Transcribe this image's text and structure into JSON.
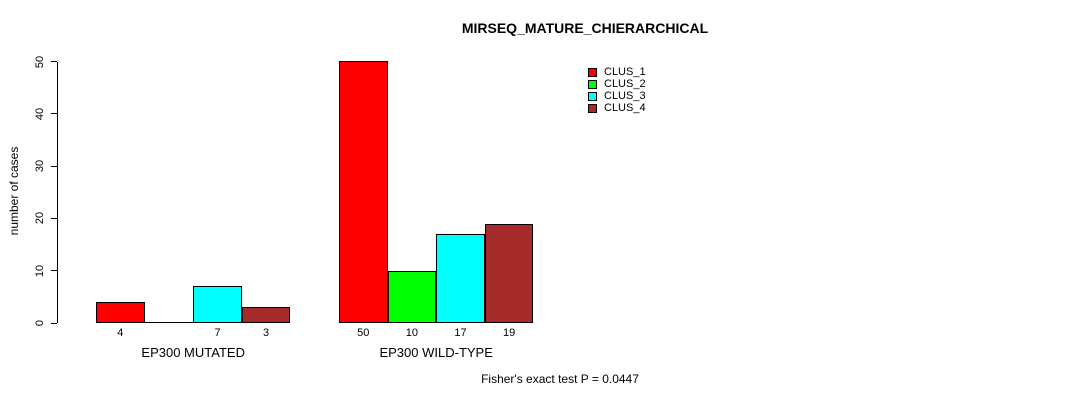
{
  "chart_data": {
    "type": "bar",
    "title": "MIRSEQ_MATURE_CHIERARCHICAL",
    "ylabel": "number of cases",
    "xlabel": "",
    "ylim": [
      0,
      50
    ],
    "yticks": [
      0,
      10,
      20,
      30,
      40,
      50
    ],
    "grid": false,
    "legend_position": "top-right",
    "series": [
      {
        "name": "CLUS_1",
        "color": "#ff0000"
      },
      {
        "name": "CLUS_2",
        "color": "#00ff00"
      },
      {
        "name": "CLUS_3",
        "color": "#00ffff"
      },
      {
        "name": "CLUS_4",
        "color": "#a52a2a"
      }
    ],
    "categories": [
      "EP300 MUTATED",
      "EP300 WILD-TYPE"
    ],
    "groups": [
      {
        "label": "EP300 MUTATED",
        "values": [
          4,
          0,
          7,
          3
        ],
        "bar_labels": [
          "4",
          "",
          "7",
          "3"
        ]
      },
      {
        "label": "EP300 WILD-TYPE",
        "values": [
          50,
          10,
          17,
          19
        ],
        "bar_labels": [
          "50",
          "10",
          "17",
          "19"
        ]
      }
    ],
    "annotation": "Fisher's exact test P = 0.0447"
  }
}
